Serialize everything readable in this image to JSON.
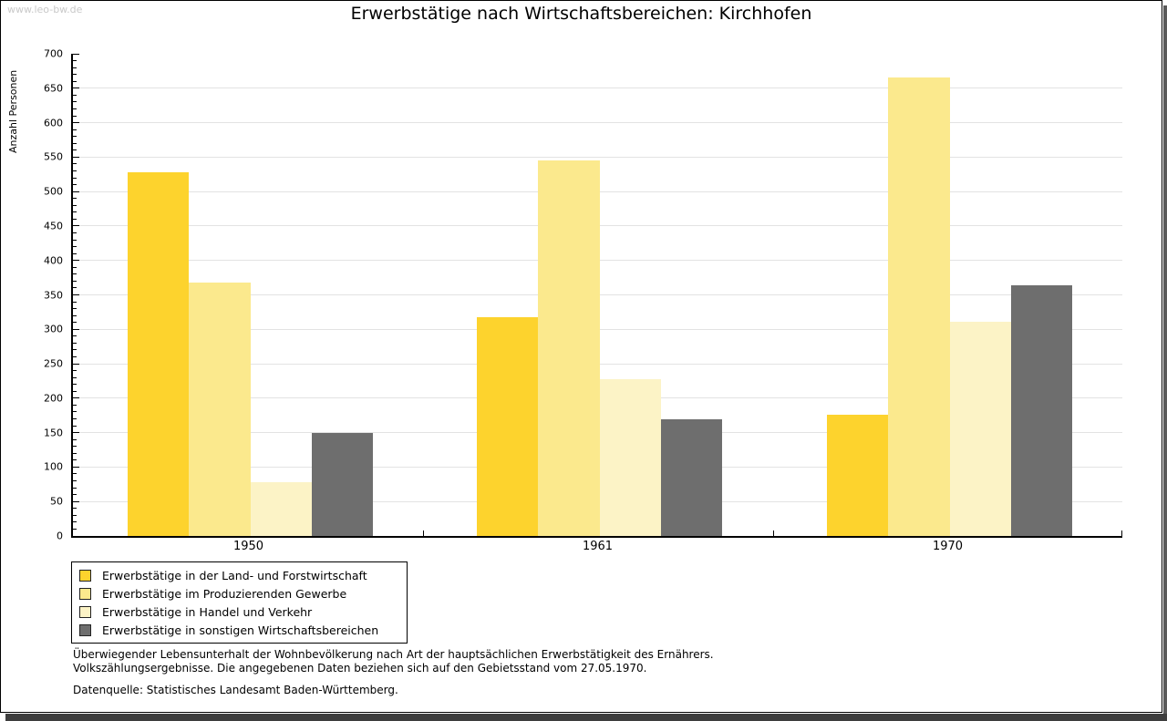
{
  "watermark": "www.leo-bw.de",
  "title": "Erwerbstätige nach Wirtschaftsbereichen: Kirchhofen",
  "chart_data": {
    "type": "bar",
    "title": "Erwerbstätige nach Wirtschaftsbereichen: Kirchhofen",
    "xlabel": "",
    "ylabel": "Anzahl Personen",
    "categories": [
      "1950",
      "1961",
      "1970"
    ],
    "series": [
      {
        "name": "Erwerbstätige in der Land- und Forstwirtschaft",
        "color": "#FDD32D",
        "values": [
          528,
          317,
          176
        ]
      },
      {
        "name": "Erwerbstätige im Produzierenden Gewerbe",
        "color": "#FBE98D",
        "values": [
          368,
          545,
          665
        ]
      },
      {
        "name": "Erwerbstätige in Handel und Verkehr",
        "color": "#FCF3C6",
        "values": [
          78,
          228,
          311
        ]
      },
      {
        "name": "Erwerbstätige in sonstigen Wirtschaftsbereichen",
        "color": "#6E6E6E",
        "values": [
          150,
          170,
          364
        ]
      }
    ],
    "ylim": [
      0,
      700
    ],
    "ytick_step": 50,
    "ytick_minor_step": 10,
    "grid": true,
    "legend_position": "bottom-left"
  },
  "footnotes": {
    "line1": "Überwiegender Lebensunterhalt der Wohnbevölkerung nach Art der hauptsächlichen Erwerbstätigkeit des Ernährers.",
    "line2": "Volkszählungsergebnisse. Die angegebenen Daten beziehen sich auf den Gebietsstand vom 27.05.1970.",
    "source": "Datenquelle: Statistisches Landesamt Baden-Württemberg."
  }
}
